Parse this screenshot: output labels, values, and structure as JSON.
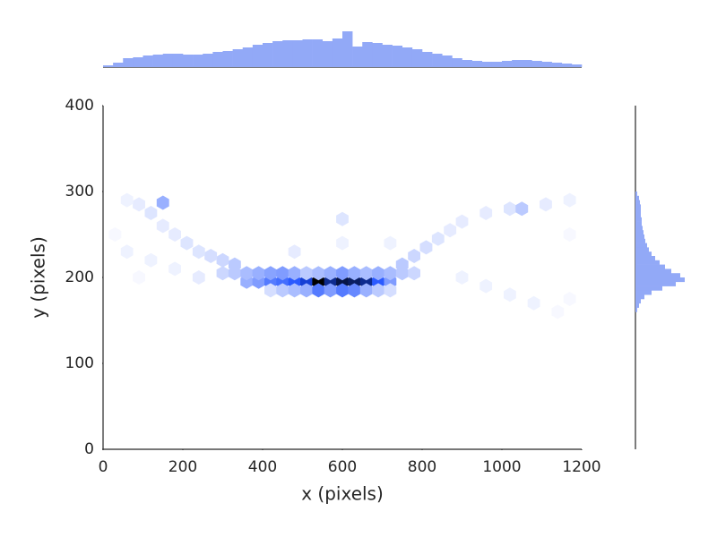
{
  "chart_data": [
    {
      "type": "hexbin",
      "xlabel": "x (pixels)",
      "ylabel": "y (pixels)",
      "xlim": [
        0,
        1200
      ],
      "ylim": [
        0,
        400
      ],
      "xticks": [
        0,
        200,
        400,
        600,
        800,
        1000,
        1200
      ],
      "yticks": [
        0,
        100,
        200,
        300,
        400
      ],
      "colors": [
        "#ffffff",
        "#1a4dff",
        "#000000"
      ],
      "x": [
        360,
        390,
        420,
        450,
        480,
        510,
        540,
        570,
        600,
        630,
        660,
        690,
        720,
        420,
        450,
        480,
        510,
        540,
        570,
        600,
        630,
        660,
        690,
        720,
        300,
        330,
        360,
        390,
        420,
        450,
        480,
        510,
        540,
        570,
        600,
        630,
        660,
        690,
        720,
        750,
        780,
        330,
        300,
        270,
        240,
        210,
        180,
        150,
        120,
        90,
        150,
        60,
        750,
        780,
        810,
        840,
        870,
        900,
        960,
        1020,
        1050,
        1110,
        1170,
        60,
        120,
        180,
        240,
        900,
        960,
        1020,
        1080,
        1140,
        1170,
        600,
        600,
        30,
        1170,
        90,
        480,
        720
      ],
      "y": [
        195,
        195,
        195,
        195,
        195,
        195,
        195,
        195,
        195,
        195,
        195,
        195,
        195,
        185,
        185,
        185,
        185,
        185,
        185,
        185,
        185,
        185,
        185,
        185,
        205,
        205,
        205,
        205,
        205,
        205,
        205,
        205,
        205,
        205,
        205,
        205,
        205,
        205,
        205,
        205,
        205,
        215,
        220,
        225,
        230,
        240,
        250,
        260,
        275,
        285,
        287,
        290,
        215,
        225,
        235,
        245,
        255,
        265,
        275,
        280,
        280,
        285,
        290,
        230,
        220,
        210,
        200,
        200,
        190,
        180,
        170,
        160,
        175,
        240,
        268,
        250,
        250,
        200,
        230,
        240
      ],
      "values": [
        12,
        15,
        20,
        22,
        25,
        30,
        45,
        35,
        40,
        38,
        35,
        25,
        15,
        5,
        8,
        10,
        12,
        20,
        15,
        20,
        18,
        12,
        8,
        5,
        6,
        8,
        10,
        12,
        14,
        15,
        12,
        8,
        10,
        12,
        15,
        12,
        10,
        12,
        10,
        8,
        6,
        8,
        6,
        5,
        4,
        4,
        3,
        3,
        4,
        3,
        12,
        2,
        8,
        6,
        5,
        4,
        3,
        3,
        3,
        4,
        8,
        3,
        2,
        2,
        2,
        2,
        3,
        2,
        2,
        2,
        2,
        1,
        1,
        2,
        4,
        1,
        1,
        1,
        3,
        2
      ]
    },
    {
      "type": "histogram",
      "orientation": "vertical",
      "color": "#92a9f7",
      "bins": [
        0,
        25,
        50,
        75,
        100,
        125,
        150,
        175,
        200,
        225,
        250,
        275,
        300,
        325,
        350,
        375,
        400,
        425,
        450,
        475,
        500,
        525,
        550,
        575,
        600,
        625,
        650,
        675,
        700,
        725,
        750,
        775,
        800,
        825,
        850,
        875,
        900,
        925,
        950,
        975,
        1000,
        1025,
        1050,
        1075,
        1100,
        1125,
        1150,
        1175,
        1200
      ],
      "values": [
        2,
        5,
        10,
        11,
        13,
        14,
        15,
        15,
        14,
        14,
        15,
        17,
        18,
        20,
        22,
        25,
        27,
        29,
        30,
        30,
        31,
        31,
        29,
        32,
        40,
        23,
        28,
        27,
        25,
        24,
        22,
        20,
        17,
        15,
        13,
        10,
        8,
        7,
        6,
        6,
        7,
        8,
        8,
        7,
        6,
        5,
        4,
        3
      ]
    },
    {
      "type": "histogram",
      "orientation": "horizontal",
      "color": "#92a9f7",
      "bins": [
        160,
        165,
        170,
        175,
        180,
        185,
        190,
        195,
        200,
        205,
        210,
        215,
        220,
        225,
        230,
        235,
        240,
        245,
        250,
        255,
        260,
        265,
        270,
        275,
        280,
        285,
        290,
        295,
        300
      ],
      "values": [
        2,
        4,
        6,
        10,
        18,
        30,
        45,
        55,
        50,
        40,
        33,
        27,
        22,
        18,
        15,
        13,
        11,
        10,
        9,
        8,
        7,
        7,
        6,
        6,
        6,
        5,
        4,
        2
      ]
    }
  ]
}
